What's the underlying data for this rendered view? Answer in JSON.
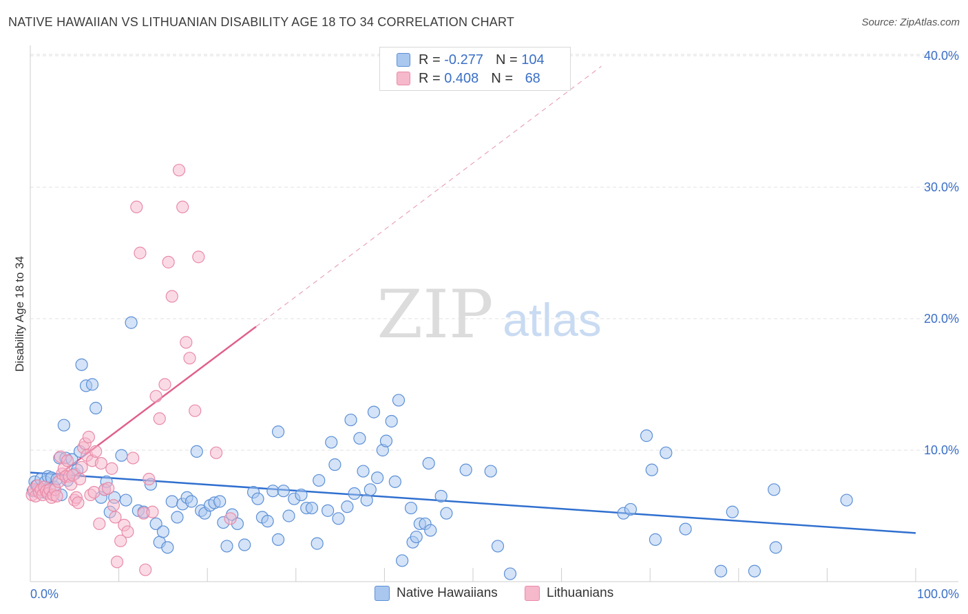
{
  "title": "NATIVE HAWAIIAN VS LITHUANIAN DISABILITY AGE 18 TO 34 CORRELATION CHART",
  "source": "Source: ZipAtlas.com",
  "watermark": {
    "zip": "ZIP",
    "atlas": "atlas"
  },
  "legend": {
    "rows": [
      {
        "r_label": "R = ",
        "r_value": "-0.277",
        "n_label": "N = ",
        "n_value": "104"
      },
      {
        "r_label": "R = ",
        "r_value": "0.408",
        "n_label": "N = ",
        "n_value": "68"
      }
    ]
  },
  "colors": {
    "blue_fill": "#a9c7ef",
    "blue_stroke": "#5b8fd6",
    "blue_line": "#2f6fcf",
    "pink_fill": "#f6b8cb",
    "pink_stroke": "#e98aa8",
    "pink_line": "#e0608a",
    "axis_text": "#3a6fc6",
    "grid": "#e2e2e2"
  },
  "chart_data": {
    "type": "scatter",
    "title": "NATIVE HAWAIIAN VS LITHUANIAN DISABILITY AGE 18 TO 34 CORRELATION CHART",
    "xlabel": "",
    "ylabel": "Disability Age 18 to 34",
    "xlim": [
      0,
      100
    ],
    "ylim": [
      0,
      42
    ],
    "x_tick_labels": [
      "0.0%",
      "100.0%"
    ],
    "y_ticks": [
      10,
      20,
      30,
      40
    ],
    "y_tick_labels": [
      "10.0%",
      "20.0%",
      "30.0%",
      "40.0%"
    ],
    "grid": true,
    "series": [
      {
        "name": "Native Hawaiians",
        "color": "#5b8fd6",
        "trend": {
          "x": [
            0,
            100
          ],
          "y": [
            8.3,
            3.7
          ]
        },
        "points": [
          [
            0.3,
            6.9
          ],
          [
            0.5,
            7.6
          ],
          [
            0.7,
            7.3
          ],
          [
            0.9,
            7.0
          ],
          [
            1.2,
            7.8
          ],
          [
            1.5,
            6.8
          ],
          [
            1.7,
            7.6
          ],
          [
            2.0,
            8.0
          ],
          [
            2.4,
            7.9
          ],
          [
            2.7,
            7.2
          ],
          [
            3.0,
            7.8
          ],
          [
            3.3,
            9.4
          ],
          [
            3.5,
            6.6
          ],
          [
            3.8,
            11.9
          ],
          [
            4.0,
            9.4
          ],
          [
            4.2,
            7.7
          ],
          [
            4.7,
            9.3
          ],
          [
            5.0,
            8.2
          ],
          [
            5.3,
            8.5
          ],
          [
            5.6,
            9.9
          ],
          [
            5.8,
            16.5
          ],
          [
            6.3,
            14.9
          ],
          [
            7.0,
            15.0
          ],
          [
            7.4,
            13.2
          ],
          [
            8.0,
            6.4
          ],
          [
            8.4,
            7.0
          ],
          [
            8.6,
            7.6
          ],
          [
            9.0,
            5.3
          ],
          [
            9.5,
            6.4
          ],
          [
            10.3,
            9.6
          ],
          [
            10.8,
            6.2
          ],
          [
            11.4,
            19.7
          ],
          [
            12.2,
            5.4
          ],
          [
            12.8,
            5.3
          ],
          [
            13.6,
            7.4
          ],
          [
            14.2,
            4.4
          ],
          [
            14.6,
            3.0
          ],
          [
            15.0,
            3.8
          ],
          [
            15.5,
            2.6
          ],
          [
            16.0,
            6.1
          ],
          [
            16.6,
            4.9
          ],
          [
            17.2,
            5.9
          ],
          [
            17.7,
            6.4
          ],
          [
            18.2,
            6.1
          ],
          [
            18.8,
            9.9
          ],
          [
            19.3,
            5.4
          ],
          [
            19.7,
            5.2
          ],
          [
            20.3,
            5.8
          ],
          [
            20.8,
            6.0
          ],
          [
            21.4,
            6.1
          ],
          [
            21.8,
            4.5
          ],
          [
            22.2,
            2.7
          ],
          [
            22.8,
            5.1
          ],
          [
            23.4,
            4.4
          ],
          [
            24.2,
            2.8
          ],
          [
            25.2,
            6.8
          ],
          [
            25.7,
            6.3
          ],
          [
            26.2,
            4.9
          ],
          [
            26.8,
            4.6
          ],
          [
            27.4,
            6.9
          ],
          [
            28.0,
            3.2
          ],
          [
            28.6,
            6.9
          ],
          [
            29.2,
            5.0
          ],
          [
            29.8,
            6.3
          ],
          [
            28.0,
            11.4
          ],
          [
            30.6,
            6.6
          ],
          [
            31.2,
            5.6
          ],
          [
            31.8,
            5.6
          ],
          [
            32.4,
            2.9
          ],
          [
            32.6,
            7.7
          ],
          [
            33.6,
            5.4
          ],
          [
            34.0,
            10.6
          ],
          [
            34.4,
            8.9
          ],
          [
            34.8,
            4.8
          ],
          [
            35.8,
            5.7
          ],
          [
            36.2,
            12.3
          ],
          [
            36.6,
            6.7
          ],
          [
            37.2,
            10.9
          ],
          [
            37.6,
            8.4
          ],
          [
            38.0,
            6.2
          ],
          [
            38.4,
            7.0
          ],
          [
            38.8,
            12.9
          ],
          [
            39.2,
            7.9
          ],
          [
            39.8,
            10.0
          ],
          [
            40.2,
            10.7
          ],
          [
            40.8,
            12.2
          ],
          [
            41.2,
            7.6
          ],
          [
            41.6,
            13.8
          ],
          [
            42.0,
            1.6
          ],
          [
            43.0,
            5.6
          ],
          [
            43.2,
            3.0
          ],
          [
            43.6,
            3.4
          ],
          [
            44.0,
            4.4
          ],
          [
            44.6,
            4.4
          ],
          [
            45.0,
            9.0
          ],
          [
            45.2,
            3.9
          ],
          [
            46.4,
            6.5
          ],
          [
            47.0,
            5.2
          ],
          [
            49.2,
            8.5
          ],
          [
            52.0,
            8.4
          ],
          [
            52.8,
            2.7
          ],
          [
            54.2,
            0.6
          ],
          [
            67.0,
            5.2
          ],
          [
            67.8,
            5.5
          ],
          [
            69.6,
            11.1
          ],
          [
            70.2,
            8.5
          ],
          [
            70.6,
            3.2
          ],
          [
            71.8,
            9.8
          ],
          [
            74.0,
            4.0
          ],
          [
            78.0,
            0.8
          ],
          [
            79.3,
            5.3
          ],
          [
            81.8,
            0.8
          ],
          [
            84.0,
            7.0
          ],
          [
            84.2,
            2.6
          ],
          [
            92.2,
            6.2
          ]
        ]
      },
      {
        "name": "Lithuanians",
        "color": "#e98aa8",
        "trend": {
          "x": [
            0,
            25.5
          ],
          "y": [
            6.5,
            19.4
          ]
        },
        "trend_dashed": {
          "x": [
            25.5,
            64.5
          ],
          "y": [
            19.4,
            39.2
          ]
        },
        "points": [
          [
            0.2,
            6.6
          ],
          [
            0.4,
            7.0
          ],
          [
            0.6,
            6.5
          ],
          [
            0.8,
            7.3
          ],
          [
            1.0,
            6.8
          ],
          [
            1.2,
            7.0
          ],
          [
            1.4,
            6.6
          ],
          [
            1.6,
            7.2
          ],
          [
            1.8,
            6.9
          ],
          [
            2.0,
            6.7
          ],
          [
            2.2,
            7.0
          ],
          [
            2.4,
            6.4
          ],
          [
            2.6,
            6.6
          ],
          [
            2.8,
            7.0
          ],
          [
            3.0,
            6.5
          ],
          [
            3.2,
            7.6
          ],
          [
            3.4,
            9.5
          ],
          [
            3.6,
            8.2
          ],
          [
            3.8,
            8.6
          ],
          [
            4.0,
            8.0
          ],
          [
            4.2,
            9.2
          ],
          [
            4.4,
            8.0
          ],
          [
            4.6,
            7.4
          ],
          [
            4.8,
            8.1
          ],
          [
            5.0,
            6.2
          ],
          [
            5.2,
            6.4
          ],
          [
            5.4,
            6.0
          ],
          [
            5.6,
            7.8
          ],
          [
            5.8,
            8.7
          ],
          [
            6.0,
            10.2
          ],
          [
            6.2,
            10.5
          ],
          [
            6.4,
            9.6
          ],
          [
            6.6,
            11.0
          ],
          [
            6.8,
            6.6
          ],
          [
            7.0,
            9.2
          ],
          [
            7.2,
            6.8
          ],
          [
            7.4,
            9.9
          ],
          [
            7.8,
            4.4
          ],
          [
            8.0,
            9.0
          ],
          [
            8.4,
            7.0
          ],
          [
            8.8,
            7.1
          ],
          [
            9.2,
            8.6
          ],
          [
            9.4,
            5.8
          ],
          [
            9.6,
            4.9
          ],
          [
            9.8,
            1.5
          ],
          [
            10.2,
            3.1
          ],
          [
            10.6,
            4.3
          ],
          [
            11.0,
            3.8
          ],
          [
            11.6,
            9.4
          ],
          [
            12.0,
            28.5
          ],
          [
            12.4,
            25.0
          ],
          [
            12.8,
            5.2
          ],
          [
            13.0,
            0.9
          ],
          [
            13.4,
            7.8
          ],
          [
            13.8,
            5.3
          ],
          [
            14.2,
            14.1
          ],
          [
            14.6,
            12.4
          ],
          [
            15.2,
            15.0
          ],
          [
            15.6,
            24.3
          ],
          [
            16.0,
            21.7
          ],
          [
            16.8,
            31.3
          ],
          [
            17.2,
            28.5
          ],
          [
            17.6,
            18.2
          ],
          [
            18.0,
            17.0
          ],
          [
            18.6,
            13.0
          ],
          [
            19.0,
            24.7
          ],
          [
            21.0,
            9.8
          ],
          [
            22.6,
            4.8
          ]
        ]
      }
    ]
  }
}
